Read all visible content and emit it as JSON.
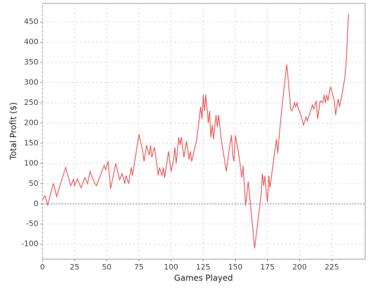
{
  "chart_data": {
    "type": "line",
    "x_label": "Games Played",
    "y_label": "Total Profit ($)",
    "x": [
      0,
      2,
      4,
      8.5,
      11,
      18,
      22,
      24,
      25,
      27,
      30,
      33,
      35,
      37,
      40,
      42,
      45,
      48,
      49,
      51,
      53,
      57,
      60,
      62,
      64,
      65,
      67,
      69,
      70,
      73,
      75,
      78,
      79,
      81,
      83,
      84,
      85,
      87,
      88,
      90,
      91,
      93,
      94,
      95,
      98,
      100,
      102,
      103,
      104,
      106,
      107,
      108,
      110,
      112,
      114,
      115,
      116,
      120,
      123,
      124,
      125,
      126,
      127,
      129,
      130,
      131,
      132,
      133,
      135,
      136,
      137,
      139,
      141,
      143,
      145,
      147,
      148,
      149,
      150,
      153,
      155,
      156,
      158,
      160,
      162,
      165,
      168,
      170,
      171,
      172,
      173,
      174,
      175,
      176,
      177,
      180,
      182,
      183,
      185,
      188,
      190,
      192,
      193,
      194,
      196,
      197,
      198,
      199,
      201,
      203,
      205,
      206,
      208,
      210,
      211,
      213,
      214,
      216,
      218,
      219,
      220,
      221,
      222,
      224,
      227,
      228,
      230,
      231,
      233,
      235,
      236,
      237,
      238
    ],
    "series": [
      {
        "color": "#ee5a5a",
        "values": [
          10,
          20,
          -3,
          51,
          18,
          90,
          45,
          60,
          45,
          62,
          40,
          65,
          50,
          80,
          55,
          45,
          70,
          95,
          85,
          105,
          38,
          100,
          60,
          75,
          50,
          70,
          50,
          90,
          70,
          130,
          172,
          130,
          105,
          145,
          120,
          145,
          115,
          140,
          120,
          70,
          90,
          70,
          90,
          65,
          130,
          80,
          110,
          140,
          100,
          165,
          145,
          165,
          115,
          155,
          110,
          130,
          105,
          160,
          240,
          210,
          270,
          230,
          270,
          200,
          230,
          165,
          195,
          160,
          220,
          190,
          220,
          160,
          120,
          80,
          130,
          170,
          120,
          105,
          170,
          115,
          65,
          95,
          -5,
          55,
          -10,
          -110,
          -30,
          20,
          75,
          45,
          70,
          30,
          5,
          70,
          40,
          115,
          160,
          125,
          200,
          290,
          345,
          275,
          235,
          230,
          250,
          240,
          250,
          235,
          220,
          195,
          215,
          205,
          225,
          245,
          235,
          255,
          210,
          255,
          250,
          270,
          250,
          270,
          255,
          290,
          255,
          220,
          260,
          240,
          270,
          310,
          340,
          400,
          470
        ]
      }
    ],
    "xlim": [
      0,
      251
    ],
    "ylim": [
      -137,
      496
    ],
    "xticks": [
      0,
      25,
      50,
      75,
      100,
      125,
      150,
      175,
      200,
      225
    ],
    "yticks": [
      -100,
      -50,
      0,
      50,
      100,
      150,
      200,
      250,
      300,
      350,
      400,
      450
    ],
    "grid": true,
    "zero_line_color": "#7070ee"
  }
}
